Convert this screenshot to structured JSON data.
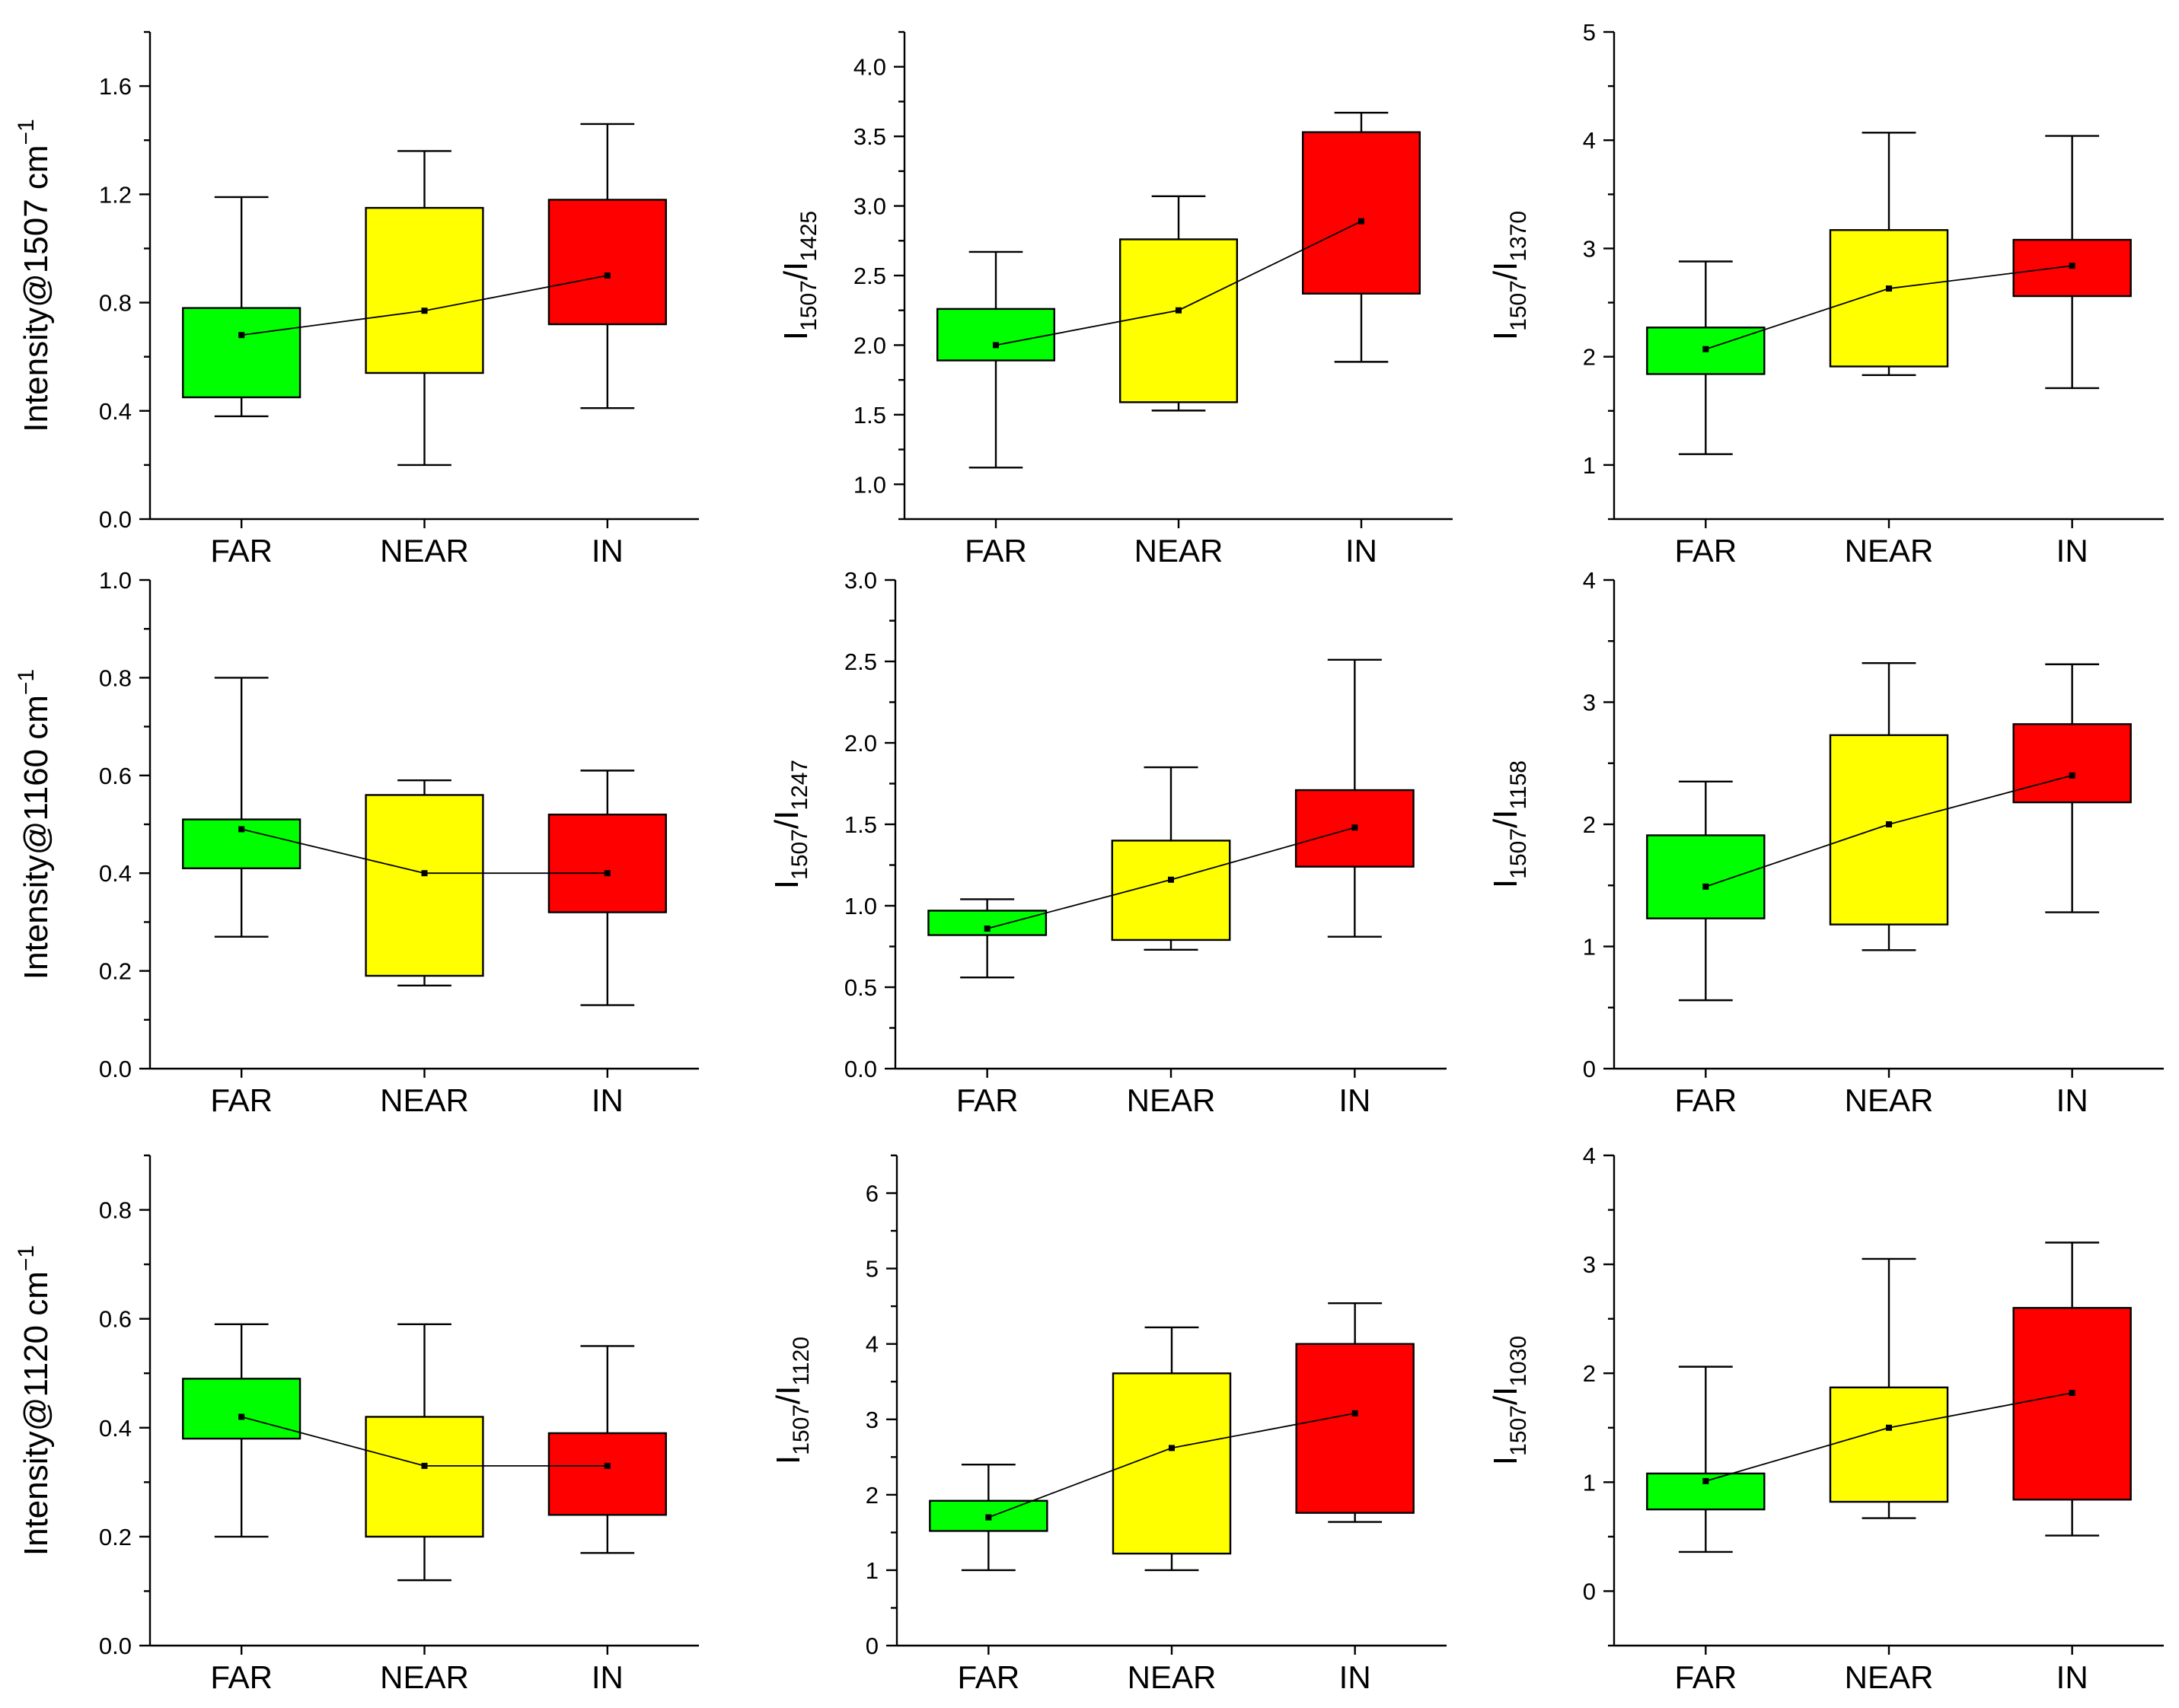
{
  "colors": {
    "FAR": "#00ff00",
    "NEAR": "#ffff00",
    "IN": "#ff0000",
    "ink": "#000000"
  },
  "chart_data": [
    {
      "type": "box",
      "categories": [
        "FAR",
        "NEAR",
        "IN"
      ],
      "ylabel": {
        "main": "Intensity@1507 cm",
        "sup": "−1"
      },
      "ylim": [
        0.0,
        1.8
      ],
      "yticks": [
        "0.0",
        "0.4",
        "0.8",
        "1.2",
        "1.6"
      ],
      "ytick_values": [
        0.0,
        0.4,
        0.8,
        1.2,
        1.6
      ],
      "series": [
        {
          "min": 0.38,
          "q1": 0.45,
          "q3": 0.78,
          "max": 1.19,
          "mean": 0.68
        },
        {
          "min": 0.2,
          "q1": 0.54,
          "q3": 1.15,
          "max": 1.36,
          "mean": 0.77
        },
        {
          "min": 0.41,
          "q1": 0.72,
          "q3": 1.18,
          "max": 1.46,
          "mean": 0.9
        }
      ]
    },
    {
      "type": "box",
      "categories": [
        "FAR",
        "NEAR",
        "IN"
      ],
      "ylabel": {
        "i1": "I",
        "s1": "1507",
        "i2": "/I",
        "s2": "1425"
      },
      "ylim": [
        0.75,
        4.25
      ],
      "yticks": [
        "1.0",
        "1.5",
        "2.0",
        "2.5",
        "3.0",
        "3.5",
        "4.0"
      ],
      "ytick_values": [
        1.0,
        1.5,
        2.0,
        2.5,
        3.0,
        3.5,
        4.0
      ],
      "series": [
        {
          "min": 1.12,
          "q1": 1.89,
          "q3": 2.26,
          "max": 2.67,
          "mean": 2.0
        },
        {
          "min": 1.53,
          "q1": 1.59,
          "q3": 2.76,
          "max": 3.07,
          "mean": 2.25
        },
        {
          "min": 1.88,
          "q1": 2.37,
          "q3": 3.53,
          "max": 3.67,
          "mean": 2.89
        }
      ]
    },
    {
      "type": "box",
      "categories": [
        "FAR",
        "NEAR",
        "IN"
      ],
      "ylabel": {
        "i1": "I",
        "s1": "1507",
        "i2": "/I",
        "s2": "1370"
      },
      "ylim": [
        0.5,
        5.0
      ],
      "yticks": [
        "1",
        "2",
        "3",
        "4",
        "5"
      ],
      "ytick_values": [
        1,
        2,
        3,
        4,
        5
      ],
      "series": [
        {
          "min": 1.1,
          "q1": 1.84,
          "q3": 2.27,
          "max": 2.88,
          "mean": 2.07
        },
        {
          "min": 1.83,
          "q1": 1.91,
          "q3": 3.17,
          "max": 4.07,
          "mean": 2.63
        },
        {
          "min": 1.71,
          "q1": 2.56,
          "q3": 3.08,
          "max": 4.04,
          "mean": 2.84
        }
      ]
    },
    {
      "type": "box",
      "categories": [
        "FAR",
        "NEAR",
        "IN"
      ],
      "ylabel": {
        "main": "Intensity@1160 cm",
        "sup": "−1"
      },
      "ylim": [
        0.0,
        1.0
      ],
      "yticks": [
        "0.0",
        "0.2",
        "0.4",
        "0.6",
        "0.8",
        "1.0"
      ],
      "ytick_values": [
        0.0,
        0.2,
        0.4,
        0.6,
        0.8,
        1.0
      ],
      "series": [
        {
          "min": 0.27,
          "q1": 0.41,
          "q3": 0.51,
          "max": 0.8,
          "mean": 0.49
        },
        {
          "min": 0.17,
          "q1": 0.19,
          "q3": 0.56,
          "max": 0.59,
          "mean": 0.4
        },
        {
          "min": 0.13,
          "q1": 0.32,
          "q3": 0.52,
          "max": 0.61,
          "mean": 0.4
        }
      ]
    },
    {
      "type": "box",
      "categories": [
        "FAR",
        "NEAR",
        "IN"
      ],
      "ylabel": {
        "i1": "I",
        "s1": "1507",
        "i2": "/I",
        "s2": "1247"
      },
      "ylim": [
        0.0,
        3.0
      ],
      "yticks": [
        "0.0",
        "0.5",
        "1.0",
        "1.5",
        "2.0",
        "2.5",
        "3.0"
      ],
      "ytick_values": [
        0.0,
        0.5,
        1.0,
        1.5,
        2.0,
        2.5,
        3.0
      ],
      "series": [
        {
          "min": 0.56,
          "q1": 0.82,
          "q3": 0.97,
          "max": 1.04,
          "mean": 0.86
        },
        {
          "min": 0.73,
          "q1": 0.79,
          "q3": 1.4,
          "max": 1.85,
          "mean": 1.16
        },
        {
          "min": 0.81,
          "q1": 1.24,
          "q3": 1.71,
          "max": 2.51,
          "mean": 1.48
        }
      ]
    },
    {
      "type": "box",
      "categories": [
        "FAR",
        "NEAR",
        "IN"
      ],
      "ylabel": {
        "i1": "I",
        "s1": "1507",
        "i2": "/I",
        "s2": "1158"
      },
      "ylim": [
        0,
        4
      ],
      "yticks": [
        "0",
        "1",
        "2",
        "3",
        "4"
      ],
      "ytick_values": [
        0,
        1,
        2,
        3,
        4
      ],
      "series": [
        {
          "min": 0.56,
          "q1": 1.23,
          "q3": 1.91,
          "max": 2.35,
          "mean": 1.49
        },
        {
          "min": 0.97,
          "q1": 1.18,
          "q3": 2.73,
          "max": 3.32,
          "mean": 2.0
        },
        {
          "min": 1.28,
          "q1": 2.18,
          "q3": 2.82,
          "max": 3.31,
          "mean": 2.4
        }
      ]
    },
    {
      "type": "box",
      "categories": [
        "FAR",
        "NEAR",
        "IN"
      ],
      "ylabel": {
        "main": "Intensity@1120 cm",
        "sup": "−1"
      },
      "ylim": [
        0.0,
        0.9
      ],
      "yticks": [
        "0.0",
        "0.2",
        "0.4",
        "0.6",
        "0.8"
      ],
      "ytick_values": [
        0.0,
        0.2,
        0.4,
        0.6,
        0.8
      ],
      "series": [
        {
          "min": 0.2,
          "q1": 0.38,
          "q3": 0.49,
          "max": 0.59,
          "mean": 0.42
        },
        {
          "min": 0.12,
          "q1": 0.2,
          "q3": 0.42,
          "max": 0.59,
          "mean": 0.33
        },
        {
          "min": 0.17,
          "q1": 0.24,
          "q3": 0.39,
          "max": 0.55,
          "mean": 0.33
        }
      ]
    },
    {
      "type": "box",
      "categories": [
        "FAR",
        "NEAR",
        "IN"
      ],
      "ylabel": {
        "i1": "I",
        "s1": "1507",
        "i2": "/I",
        "s2": "1120"
      },
      "ylim": [
        0.0,
        6.5
      ],
      "yticks": [
        "0",
        "1",
        "2",
        "3",
        "4",
        "5",
        "6"
      ],
      "ytick_values": [
        0,
        1,
        2,
        3,
        4,
        5,
        6
      ],
      "series": [
        {
          "min": 1.0,
          "q1": 1.52,
          "q3": 1.92,
          "max": 2.4,
          "mean": 1.7
        },
        {
          "min": 1.0,
          "q1": 1.22,
          "q3": 3.61,
          "max": 4.22,
          "mean": 2.62
        },
        {
          "min": 1.64,
          "q1": 1.76,
          "q3": 4.0,
          "max": 4.54,
          "mean": 3.08
        }
      ]
    },
    {
      "type": "box",
      "categories": [
        "FAR",
        "NEAR",
        "IN"
      ],
      "ylabel": {
        "i1": "I",
        "s1": "1507",
        "i2": "/I",
        "s2": "1030"
      },
      "ylim": [
        -0.5,
        4.0
      ],
      "yticks": [
        "0",
        "1",
        "2",
        "3",
        "4"
      ],
      "ytick_values": [
        0,
        1,
        2,
        3,
        4
      ],
      "series": [
        {
          "min": 0.36,
          "q1": 0.75,
          "q3": 1.08,
          "max": 2.06,
          "mean": 1.01
        },
        {
          "min": 0.67,
          "q1": 0.82,
          "q3": 1.87,
          "max": 3.05,
          "mean": 1.5
        },
        {
          "min": 0.51,
          "q1": 0.84,
          "q3": 2.6,
          "max": 3.2,
          "mean": 1.82
        }
      ]
    }
  ]
}
